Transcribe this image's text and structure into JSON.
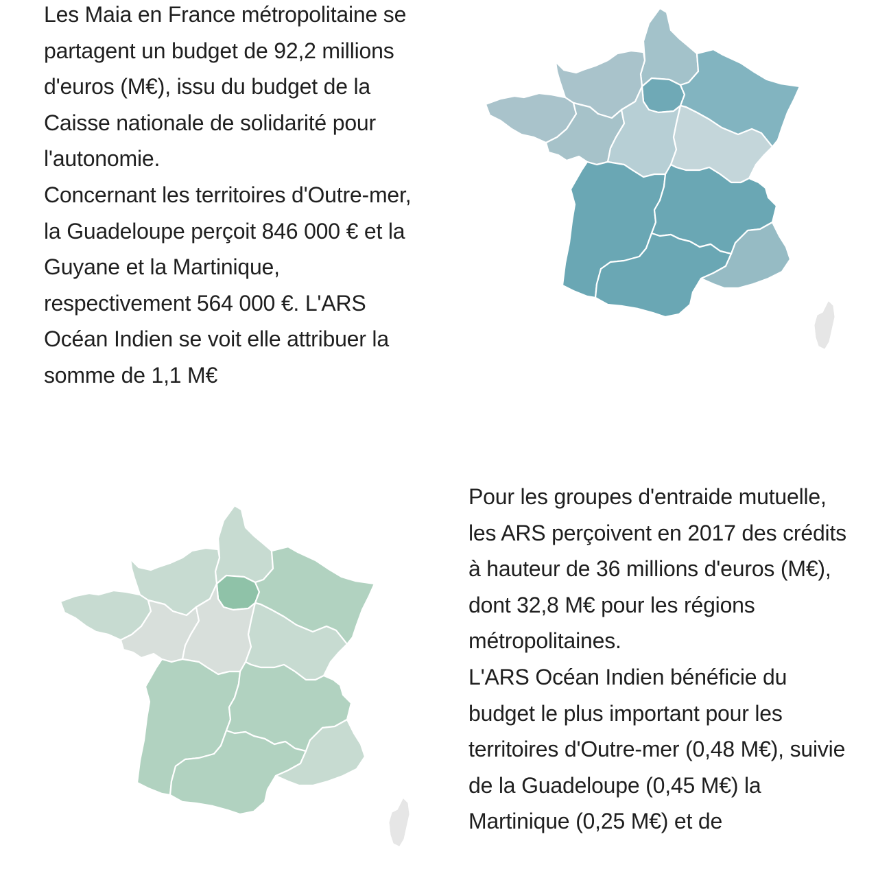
{
  "section_maia": {
    "paragraphs": [
      "Les Maia en France métropolitaine se partagent un budget de 92,2 millions d'euros (M€), issu du budget de la Caisse nationale de solidarité pour l'autonomie.",
      "Concernant les territoires d'Outre-mer, la Guadeloupe perçoit 846 000 € et la Guyane et la Martinique, respectivement 564 000 €. L'ARS Océan Indien se voit elle attribuer la somme de 1,1 M€"
    ],
    "map": {
      "regions": {
        "bretagne": "#a9c3cb",
        "normandie": "#a9c3cb",
        "hauts-de-france": "#a3c2ca",
        "ile-de-france": "#6fa9b6",
        "grand-est": "#82b4c0",
        "pays-de-la-loire": "#a6c2c9",
        "centre-val-de-loire": "#b7cfd5",
        "bourgogne-franche-comte": "#c4d6da",
        "nouvelle-aquitaine": "#6aa7b4",
        "auvergne-rhone-alpes": "#6aa7b4",
        "occitanie": "#6aa7b4",
        "provence-alpes-cote-dazur": "#96bbc4",
        "corse": "#e6e6e6"
      }
    }
  },
  "section_gem": {
    "paragraphs": [
      "Pour les groupes d'entraide mutuelle, les ARS perçoivent en 2017 des crédits à hauteur de 36 millions d'euros (M€), dont 32,8 M€ pour les régions métropolitaines.",
      "L'ARS Océan Indien bénéficie du budget le plus important pour les territoires d'Outre-mer (0,48 M€), suivie de la Guadeloupe (0,45 M€)  la Martinique (0,25 M€) et de"
    ],
    "map": {
      "regions": {
        "bretagne": "#c7dbd1",
        "normandie": "#c7dbd1",
        "hauts-de-france": "#c7dbd1",
        "ile-de-france": "#8fc2a8",
        "grand-est": "#b1d2c0",
        "pays-de-la-loire": "#d8dfdb",
        "centre-val-de-loire": "#d8dfdb",
        "bourgogne-franche-comte": "#c7dbd1",
        "nouvelle-aquitaine": "#b1d2c0",
        "auvergne-rhone-alpes": "#b1d2c0",
        "occitanie": "#b1d2c0",
        "provence-alpes-cote-dazur": "#c7dbd1",
        "corse": "#e6e6e6"
      }
    }
  }
}
